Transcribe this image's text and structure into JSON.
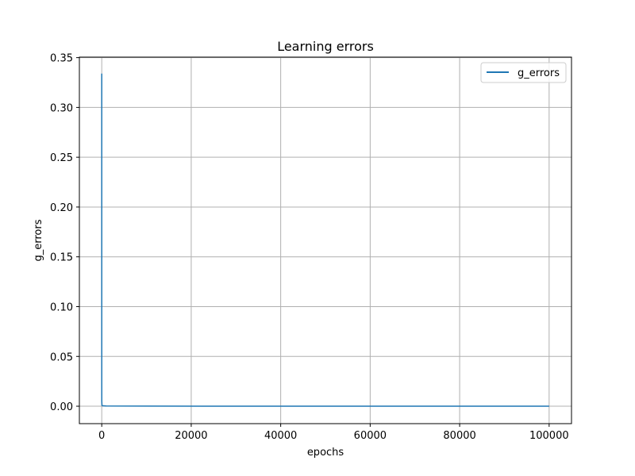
{
  "chart_data": {
    "type": "line",
    "title": "Learning errors",
    "xlabel": "epochs",
    "ylabel": "g_errors",
    "xlim": [
      -5000,
      105000
    ],
    "ylim": [
      -0.0175,
      0.3505
    ],
    "xticks": [
      0,
      20000,
      40000,
      60000,
      80000,
      100000
    ],
    "xtick_labels": [
      "0",
      "20000",
      "40000",
      "60000",
      "80000",
      "100000"
    ],
    "yticks": [
      0.0,
      0.05,
      0.1,
      0.15,
      0.2,
      0.25,
      0.3,
      0.35
    ],
    "ytick_labels": [
      "0.00",
      "0.05",
      "0.10",
      "0.15",
      "0.20",
      "0.25",
      "0.30",
      "0.35"
    ],
    "grid": true,
    "legend": {
      "position": "top-right"
    },
    "series": [
      {
        "name": "g_errors",
        "color": "#1f77b4",
        "x": [
          0,
          1,
          2,
          5,
          10,
          50,
          100,
          1000,
          10000,
          50000,
          100000
        ],
        "y": [
          0.334,
          0.2,
          0.08,
          0.02,
          0.005,
          0.001,
          0.0005,
          0.0002,
          0.0001,
          0.0,
          0.0
        ]
      }
    ]
  }
}
